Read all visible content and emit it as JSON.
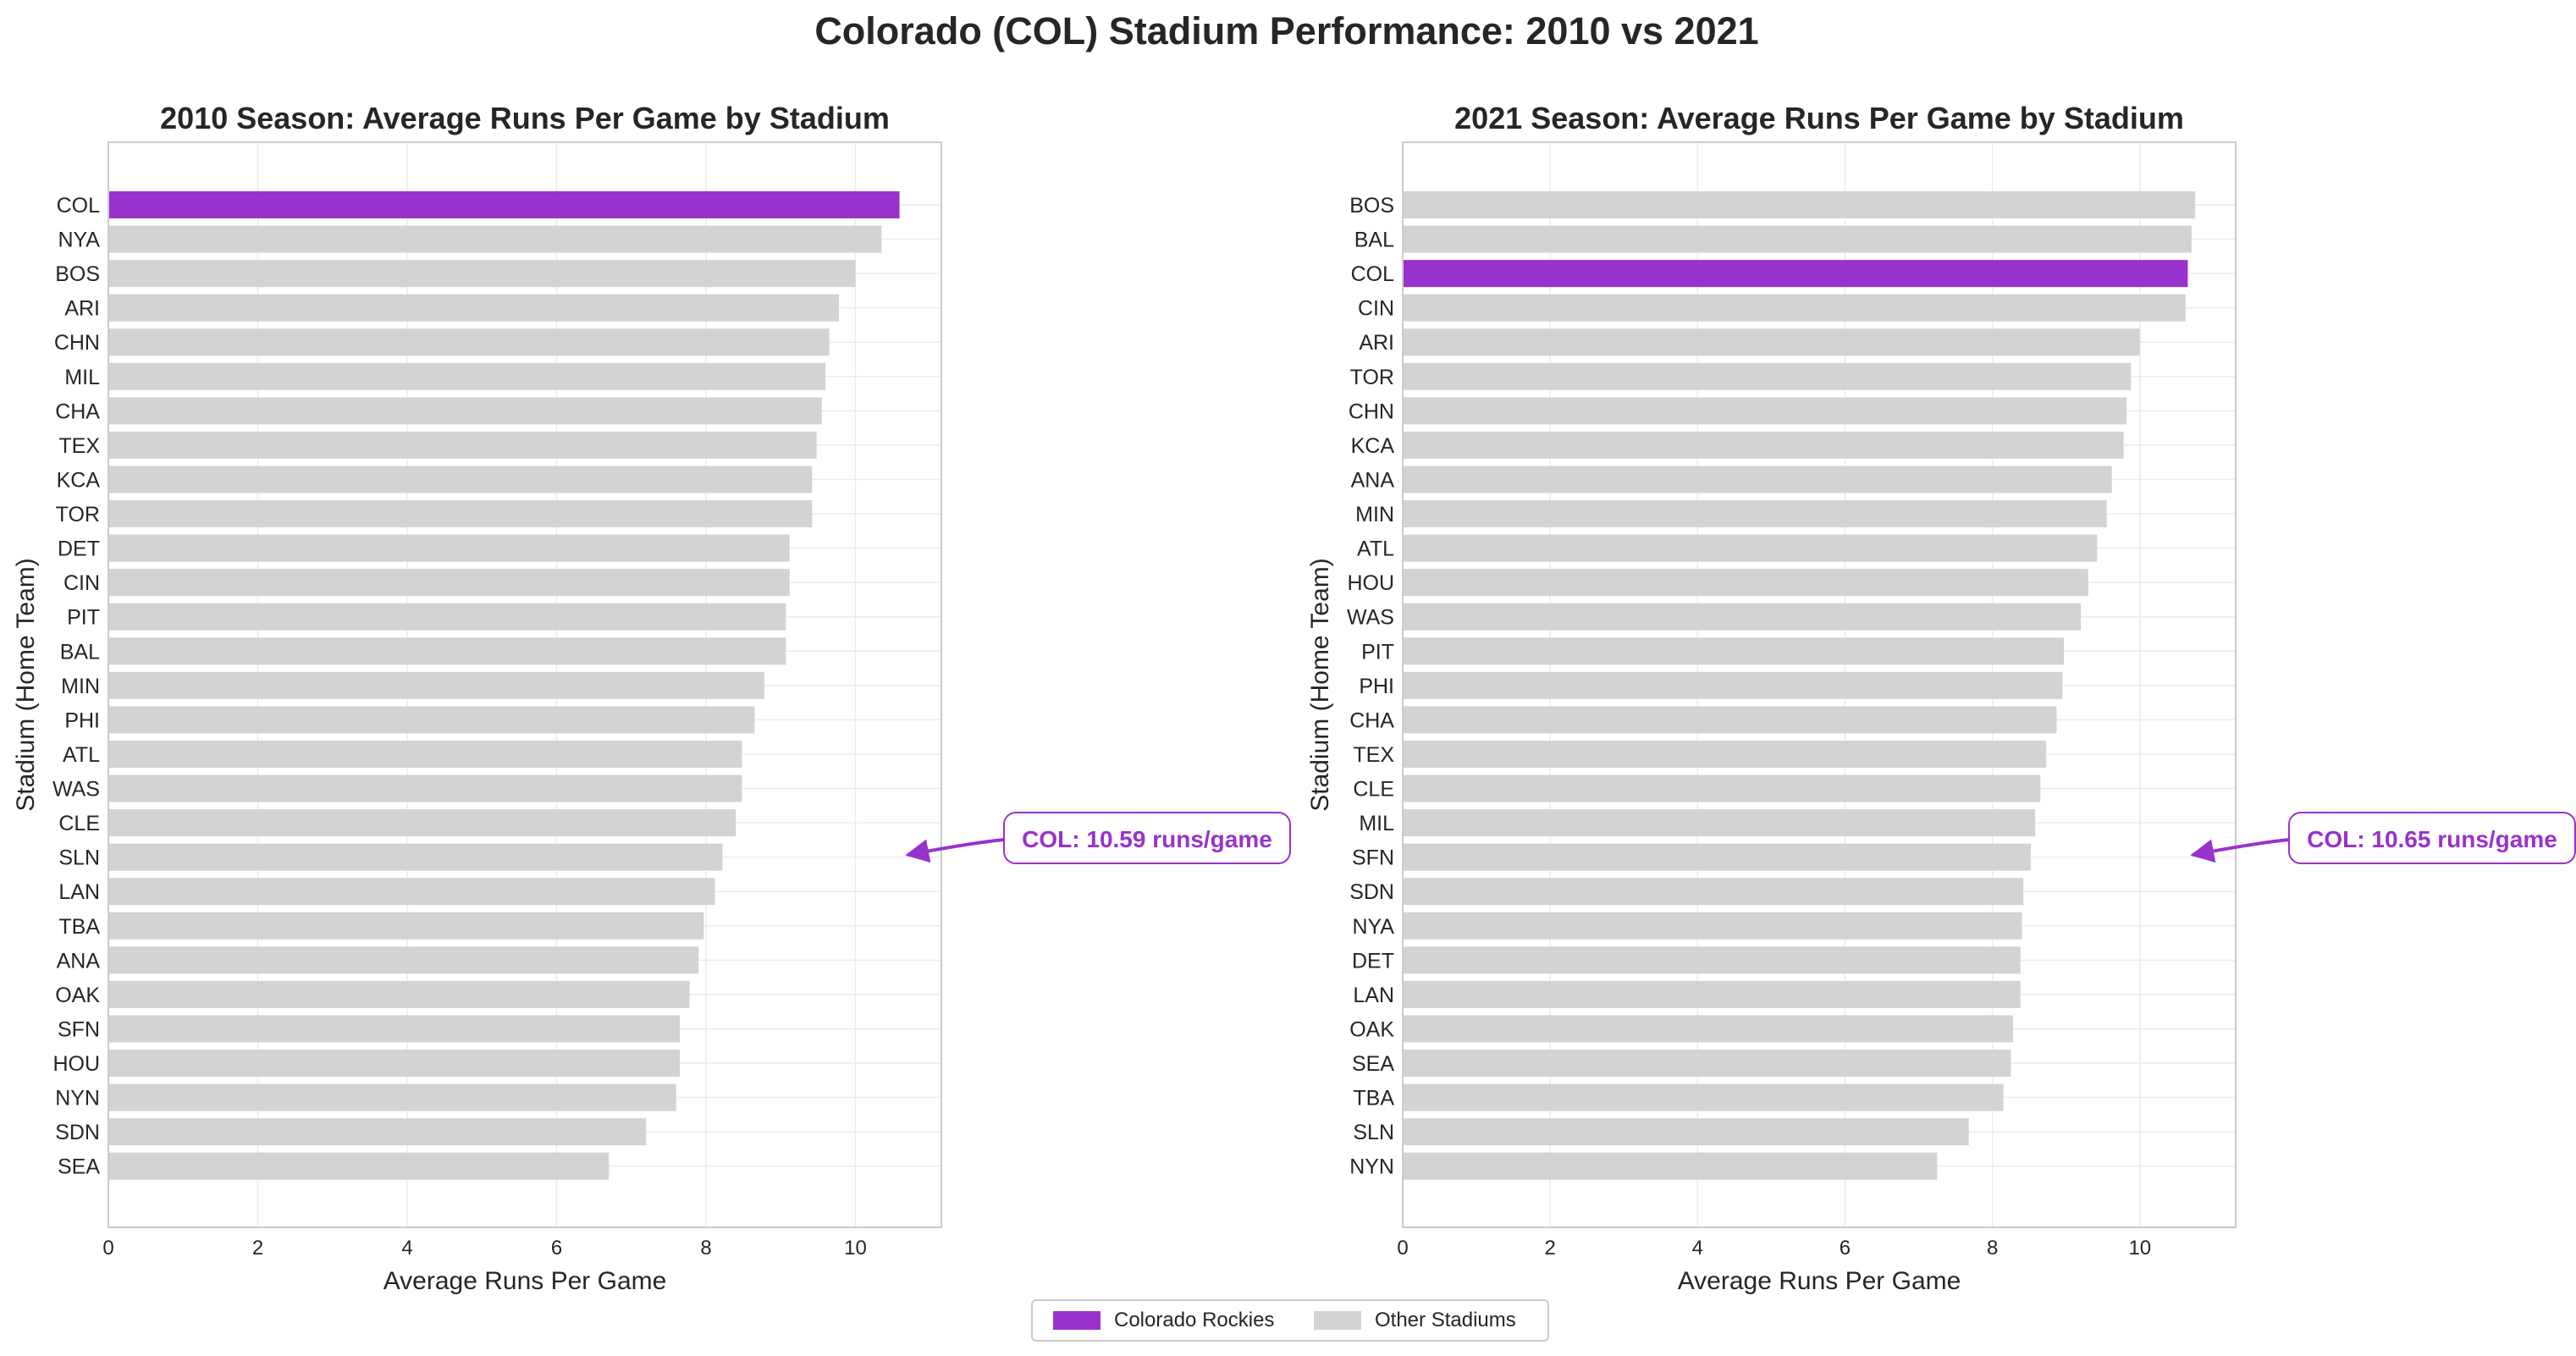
{
  "title": "Colorado (COL) Stadium Performance: 2010 vs 2021",
  "colors": {
    "highlight": "#9932cc",
    "other": "#d3d3d3",
    "text": "#262626",
    "grid": "#ebebeb",
    "spine": "#cccccc"
  },
  "legend": {
    "placement": "bottom-center",
    "items": [
      {
        "label": "Colorado Rockies",
        "color": "#9932cc"
      },
      {
        "label": "Other Stadiums",
        "color": "#d3d3d3"
      }
    ]
  },
  "chart_data": [
    {
      "type": "bar",
      "orientation": "horizontal",
      "title": "2010 Season: Average Runs Per Game by Stadium",
      "xlabel": "Average Runs Per Game",
      "ylabel": "Stadium (Home Team)",
      "xlim": [
        0,
        11.15
      ],
      "xticks": [
        0,
        2,
        4,
        6,
        8,
        10
      ],
      "grid": true,
      "highlight": "COL",
      "annotation": "COL: 10.59 runs/game",
      "categories": [
        "COL",
        "NYA",
        "BOS",
        "ARI",
        "CHN",
        "MIL",
        "CHA",
        "TEX",
        "KCA",
        "TOR",
        "DET",
        "CIN",
        "PIT",
        "BAL",
        "MIN",
        "PHI",
        "ATL",
        "WAS",
        "CLE",
        "SLN",
        "LAN",
        "TBA",
        "ANA",
        "OAK",
        "SFN",
        "HOU",
        "NYN",
        "SDN",
        "SEA"
      ],
      "values": [
        10.59,
        10.35,
        10.0,
        9.78,
        9.65,
        9.6,
        9.55,
        9.48,
        9.42,
        9.42,
        9.12,
        9.12,
        9.07,
        9.07,
        8.78,
        8.65,
        8.48,
        8.48,
        8.4,
        8.22,
        8.12,
        7.97,
        7.9,
        7.78,
        7.65,
        7.65,
        7.6,
        7.2,
        6.7
      ]
    },
    {
      "type": "bar",
      "orientation": "horizontal",
      "title": "2021 Season: Average Runs Per Game by Stadium",
      "xlabel": "Average Runs Per Game",
      "ylabel": "Stadium (Home Team)",
      "xlim": [
        0,
        11.3
      ],
      "xticks": [
        0,
        2,
        4,
        6,
        8,
        10
      ],
      "grid": true,
      "highlight": "COL",
      "annotation": "COL: 10.65 runs/game",
      "categories": [
        "BOS",
        "BAL",
        "COL",
        "CIN",
        "ARI",
        "TOR",
        "CHN",
        "KCA",
        "ANA",
        "MIN",
        "ATL",
        "HOU",
        "WAS",
        "PIT",
        "PHI",
        "CHA",
        "TEX",
        "CLE",
        "MIL",
        "SFN",
        "SDN",
        "NYA",
        "DET",
        "LAN",
        "OAK",
        "SEA",
        "TBA",
        "SLN",
        "NYN"
      ],
      "values": [
        10.75,
        10.7,
        10.65,
        10.62,
        10.0,
        9.88,
        9.82,
        9.78,
        9.62,
        9.55,
        9.42,
        9.3,
        9.2,
        8.97,
        8.95,
        8.87,
        8.73,
        8.65,
        8.58,
        8.52,
        8.42,
        8.4,
        8.38,
        8.38,
        8.28,
        8.25,
        8.15,
        7.68,
        7.25
      ]
    }
  ]
}
